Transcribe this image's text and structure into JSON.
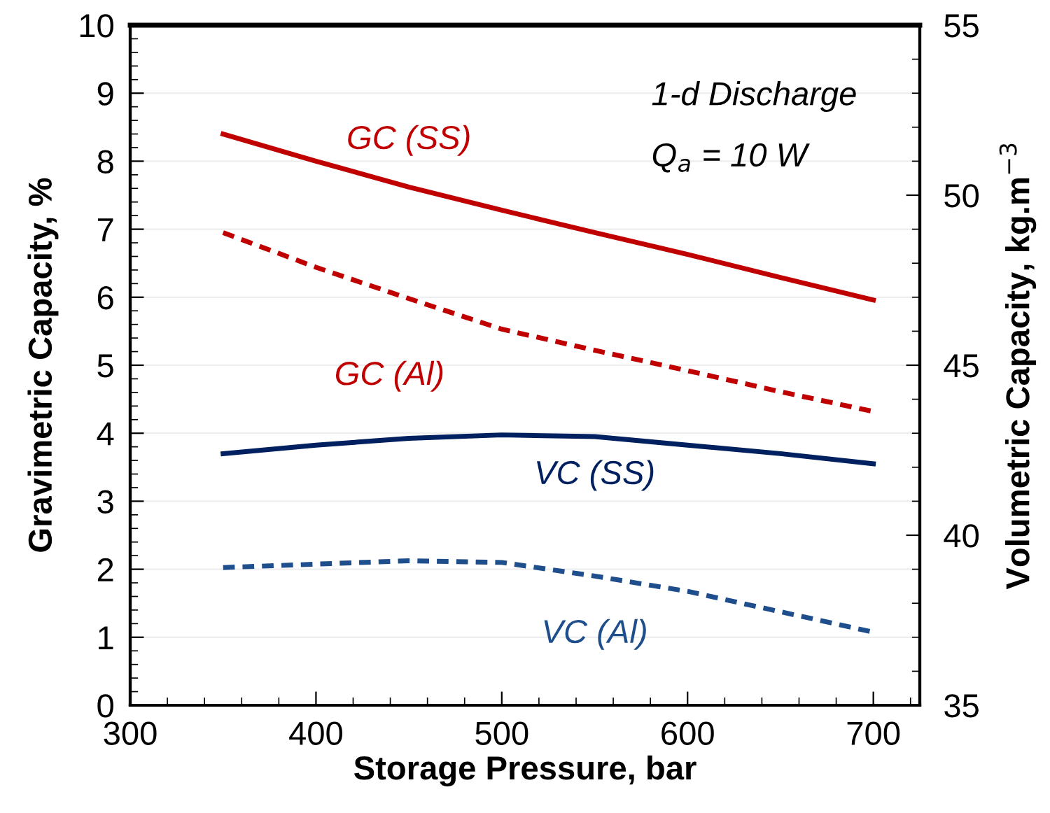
{
  "chart_data": {
    "type": "line",
    "xlabel": "Storage Pressure, bar",
    "ylabel": "Gravimetric Capacity, %",
    "y2label": "Volumetric Capacity, kg.m$^{−3}$",
    "annotations": [
      "1-d Discharge",
      "Q$_{a}$ = 10 W"
    ],
    "xlim": [
      300,
      725
    ],
    "xticks": [
      300,
      400,
      500,
      600,
      700
    ],
    "ylim": [
      0,
      10
    ],
    "yticks": [
      0,
      1,
      2,
      3,
      4,
      5,
      6,
      7,
      8,
      9,
      10
    ],
    "y2lim": [
      35,
      55
    ],
    "y2ticks": [
      35,
      40,
      45,
      50,
      55
    ],
    "grid": "y",
    "legend": false,
    "series": [
      {
        "name": "GC (SS)",
        "color": "#c00000",
        "line_style": "solid",
        "x": [
          350,
          400,
          450,
          500,
          550,
          600,
          650,
          700
        ],
        "values": [
          8.4,
          8.0,
          7.62,
          7.28,
          6.95,
          6.63,
          6.29,
          5.96
        ]
      },
      {
        "name": "GC (Al)",
        "color": "#c00000",
        "line_style": "dashed",
        "x": [
          350,
          400,
          450,
          500,
          550,
          600,
          650,
          700
        ],
        "values": [
          6.95,
          6.44,
          5.98,
          5.53,
          5.22,
          4.92,
          4.61,
          4.32
        ]
      },
      {
        "name": "VC (SS)",
        "color": "#002060",
        "line_style": "solid",
        "axis": "y2",
        "x": [
          350,
          400,
          450,
          500,
          550,
          600,
          650,
          700
        ],
        "values": [
          42.4,
          42.65,
          42.85,
          42.95,
          42.9,
          42.65,
          42.4,
          42.1
        ]
      },
      {
        "name": "VC (Al)",
        "color": "#1f4e8c",
        "line_style": "dashed",
        "axis": "y2",
        "x": [
          350,
          400,
          450,
          500,
          550,
          600,
          650,
          700
        ],
        "values": [
          39.05,
          39.15,
          39.25,
          39.2,
          38.8,
          38.35,
          37.75,
          37.15
        ]
      }
    ]
  }
}
